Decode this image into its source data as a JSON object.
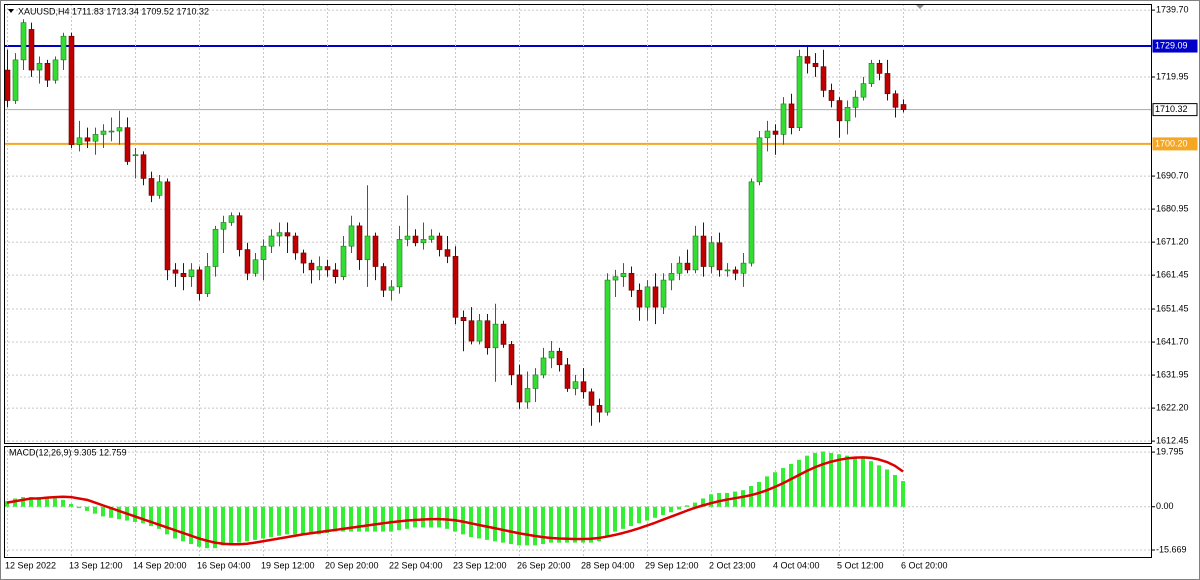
{
  "chart_data": [
    {
      "type": "candlestick",
      "title": "XAUUSD,H4  1711.83 1713.34 1709.52 1710.32",
      "ylim": [
        1611.9,
        1741.5
      ],
      "yticks": [
        1612.45,
        {
          "value": 1622.2,
          "label": "1622.20"
        },
        1631.95,
        {
          "value": 1641.7,
          "label": "1641.70"
        },
        1651.45,
        1661.45,
        {
          "value": 1671.2,
          "label": "1671.20"
        },
        1680.95,
        {
          "value": 1690.7,
          "label": "1690.70"
        },
        1719.95,
        {
          "value": 1739.7,
          "label": "1739.70"
        }
      ],
      "grid": true,
      "up_color": "#33dd33",
      "down_color": "#c00000",
      "hlines": [
        {
          "value": 1729.09,
          "color": "#0000c8",
          "text_color": "#ffffff"
        },
        {
          "value": 1710.32,
          "color": "#a0a8b8",
          "text_color": "#000000"
        },
        {
          "value": 1700.2,
          "label": "1700.20",
          "color": "#f5a623",
          "text_color": "#ffffff"
        }
      ],
      "open": [
        1722,
        1713,
        1725,
        1734,
        1722,
        1724,
        1719,
        1725,
        1732,
        1700,
        1702,
        1701,
        1703,
        1704,
        1704,
        1705,
        1697,
        1697,
        1690,
        1685,
        1689,
        1663,
        1662,
        1661,
        1663,
        1656,
        1664,
        1675,
        1677,
        1679,
        1669,
        1662,
        1666,
        1670,
        1673,
        1674,
        1673,
        1668,
        1665,
        1663,
        1664,
        1663,
        1661,
        1670,
        1676,
        1666,
        1673,
        1664,
        1657,
        1658,
        1672,
        1673,
        1671,
        1672,
        1673,
        1669,
        1667,
        1649,
        1648,
        1642,
        1648,
        1640,
        1647,
        1641,
        1632,
        1624,
        1628,
        1632,
        1637,
        1639,
        1635,
        1628,
        1630,
        1627,
        1623,
        1621,
        1660,
        1661,
        1662,
        1657,
        1652,
        1658,
        1652,
        1660,
        1662,
        1665,
        1663,
        1673,
        1664,
        1671,
        1663,
        1663,
        1662,
        1665,
        1689,
        1702,
        1704,
        1703,
        1712,
        1705,
        1726,
        1724,
        1723,
        1716,
        1713,
        1707,
        1711,
        1714,
        1718,
        1724,
        1721,
        1715,
        1711.83
      ],
      "high": [
        1728,
        1727,
        1737,
        1736,
        1726,
        1725,
        1726,
        1733,
        1733,
        1707,
        1705,
        1705,
        1706,
        1708,
        1710,
        1708,
        1699,
        1698,
        1692,
        1691,
        1690,
        1665,
        1665,
        1665,
        1664,
        1668,
        1676,
        1679,
        1680,
        1680,
        1671,
        1668,
        1672,
        1675,
        1677,
        1677,
        1674,
        1669,
        1666,
        1667,
        1666,
        1665,
        1673,
        1679,
        1677,
        1688,
        1674,
        1665,
        1660,
        1676,
        1685,
        1675,
        1677,
        1675,
        1674,
        1673,
        1670,
        1651,
        1652,
        1650,
        1650,
        1653,
        1648,
        1642,
        1635,
        1633,
        1634,
        1640,
        1642,
        1640,
        1637,
        1632,
        1634,
        1628,
        1625,
        1662,
        1663,
        1665,
        1664,
        1659,
        1660,
        1662,
        1662,
        1665,
        1667,
        1669,
        1676,
        1677,
        1673,
        1674,
        1665,
        1664,
        1668,
        1690,
        1704,
        1707,
        1706,
        1714,
        1715,
        1728,
        1729,
        1727,
        1728,
        1718,
        1714,
        1713,
        1716,
        1720,
        1725,
        1725,
        1725,
        1716,
        1713.34
      ],
      "low": [
        1711,
        1712,
        1722,
        1720,
        1718,
        1717,
        1718,
        1722,
        1699,
        1698,
        1699,
        1697,
        1699,
        1701,
        1700,
        1694,
        1690,
        1688,
        1683,
        1684,
        1660,
        1658,
        1657,
        1658,
        1654,
        1655,
        1661,
        1668,
        1676,
        1667,
        1660,
        1661,
        1660,
        1668,
        1670,
        1668,
        1666,
        1662,
        1659,
        1660,
        1661,
        1659,
        1660,
        1668,
        1663,
        1658,
        1660,
        1655,
        1654,
        1656,
        1670,
        1670,
        1669,
        1671,
        1667,
        1665,
        1647,
        1639,
        1641,
        1641,
        1638,
        1630,
        1640,
        1629,
        1622,
        1622,
        1624,
        1631,
        1634,
        1633,
        1627,
        1626,
        1625,
        1617,
        1618,
        1620,
        1655,
        1658,
        1655,
        1648,
        1648,
        1647,
        1650,
        1657,
        1660,
        1662,
        1662,
        1661,
        1662,
        1661,
        1661,
        1660,
        1658,
        1664,
        1688,
        1698,
        1697,
        1700,
        1703,
        1704,
        1721,
        1720,
        1714,
        1711,
        1702,
        1703,
        1708,
        1713,
        1717,
        1719,
        1713,
        1708,
        1709.52
      ],
      "close": [
        1713,
        1725,
        1736,
        1722,
        1724,
        1719,
        1725,
        1732,
        1700,
        1702,
        1701,
        1703,
        1704,
        1704,
        1705,
        1695,
        1697,
        1690,
        1685,
        1689,
        1663,
        1662,
        1661,
        1663,
        1656,
        1664,
        1675,
        1677,
        1679,
        1669,
        1662,
        1666,
        1670,
        1673,
        1674,
        1673,
        1668,
        1665,
        1663,
        1664,
        1663,
        1661,
        1670,
        1676,
        1666,
        1673,
        1664,
        1657,
        1658,
        1672,
        1673,
        1671,
        1672,
        1673,
        1669,
        1667,
        1649,
        1648,
        1642,
        1648,
        1640,
        1647,
        1641,
        1632,
        1624,
        1628,
        1632,
        1637,
        1639,
        1635,
        1628,
        1630,
        1627,
        1623,
        1621,
        1660,
        1661,
        1662,
        1657,
        1652,
        1658,
        1652,
        1660,
        1662,
        1665,
        1663,
        1673,
        1664,
        1671,
        1663,
        1663,
        1662,
        1665,
        1689,
        1702,
        1704,
        1703,
        1712,
        1705,
        1726,
        1724,
        1723,
        1716,
        1713,
        1707,
        1711,
        1714,
        1718,
        1724,
        1721,
        1715,
        1711,
        1710.32
      ]
    },
    {
      "type": "macd",
      "title": "MACD(12,26,9) 9.305 12.759",
      "ylim": [
        -18.2,
        22.0
      ],
      "yticks": [
        -15.669,
        {
          "value": 0,
          "label": "0.00"
        },
        19.795
      ],
      "categories": [
        "12 Sep 2022",
        null,
        null,
        null,
        null,
        null,
        null,
        null,
        "13 Sep 12:00",
        null,
        null,
        null,
        null,
        null,
        null,
        null,
        "14 Sep 20:00",
        null,
        null,
        null,
        null,
        null,
        null,
        null,
        "16 Sep 04:00",
        null,
        null,
        null,
        null,
        null,
        null,
        null,
        "19 Sep 12:00",
        null,
        null,
        null,
        null,
        null,
        null,
        null,
        "20 Sep 20:00",
        null,
        null,
        null,
        null,
        null,
        null,
        null,
        "22 Sep 04:00",
        null,
        null,
        null,
        null,
        null,
        null,
        null,
        "23 Sep 12:00",
        null,
        null,
        null,
        null,
        null,
        null,
        null,
        "26 Sep 20:00",
        null,
        null,
        null,
        null,
        null,
        null,
        null,
        "28 Sep 04:00",
        null,
        null,
        null,
        null,
        null,
        null,
        null,
        "29 Sep 12:00",
        null,
        null,
        null,
        null,
        null,
        null,
        null,
        "2 Oct 23:00",
        null,
        null,
        null,
        null,
        null,
        null,
        null,
        "4 Oct 04:00",
        null,
        null,
        null,
        null,
        null,
        null,
        null,
        "5 Oct 12:00",
        null,
        null,
        null,
        null,
        null,
        null,
        null,
        "6 Oct 20:00"
      ],
      "histogram": {
        "color": "#33ee33",
        "values": [
          2,
          3,
          3.5,
          3.5,
          3.5,
          3,
          3,
          2.5,
          1,
          -0.5,
          -1.5,
          -2.5,
          -3.5,
          -4,
          -4.5,
          -5,
          -5.5,
          -6,
          -7,
          -8,
          -10,
          -11.5,
          -12.5,
          -13.5,
          -14.5,
          -15,
          -15,
          -14,
          -13.5,
          -13,
          -12.5,
          -12,
          -11.5,
          -11,
          -10.5,
          -10,
          -10,
          -10,
          -10,
          -10,
          -9.5,
          -9,
          -9,
          -9,
          -9,
          -9,
          -9,
          -9,
          -9,
          -8.5,
          -8,
          -7.5,
          -7.5,
          -7.5,
          -7.5,
          -8,
          -9,
          -10,
          -11,
          -11.5,
          -12,
          -12.5,
          -13,
          -13.5,
          -14,
          -14,
          -14,
          -13.5,
          -13,
          -13,
          -13,
          -13,
          -13,
          -13,
          -12.5,
          -10.5,
          -9,
          -8,
          -7,
          -6,
          -5,
          -4,
          -3,
          -2,
          -1,
          0.5,
          1.5,
          3,
          4.5,
          5,
          5,
          5.5,
          6,
          7.5,
          9,
          11,
          12.5,
          14,
          15.5,
          17,
          18.5,
          19.5,
          20,
          19.5,
          19,
          18.5,
          18,
          17.5,
          16.5,
          15,
          13.5,
          11.5,
          9.305
        ]
      },
      "signal": {
        "color": "#dd0000",
        "values": [
          1.5,
          2,
          2.5,
          3,
          3,
          3.3,
          3.5,
          3.6,
          3.5,
          3,
          2.5,
          1.5,
          0.5,
          -0.5,
          -1.5,
          -2.5,
          -3.5,
          -4.5,
          -5.5,
          -6.5,
          -7.5,
          -8.5,
          -9.5,
          -10.5,
          -11.5,
          -12.3,
          -13,
          -13.4,
          -13.6,
          -13.6,
          -13.4,
          -13,
          -12.5,
          -12,
          -11.5,
          -11,
          -10.5,
          -10,
          -9.6,
          -9.2,
          -8.8,
          -8.4,
          -8,
          -7.6,
          -7.2,
          -6.8,
          -6.4,
          -6,
          -5.6,
          -5.3,
          -5,
          -4.8,
          -4.6,
          -4.5,
          -4.5,
          -4.6,
          -4.9,
          -5.4,
          -6,
          -6.6,
          -7.2,
          -7.8,
          -8.4,
          -9,
          -9.6,
          -10.1,
          -10.6,
          -11,
          -11.3,
          -11.5,
          -11.6,
          -11.7,
          -11.7,
          -11.6,
          -11.3,
          -10.8,
          -10.2,
          -9.5,
          -8.7,
          -7.8,
          -6.8,
          -5.8,
          -4.7,
          -3.6,
          -2.5,
          -1.4,
          -0.4,
          0.5,
          1.3,
          2,
          2.6,
          3.1,
          3.6,
          4.2,
          5,
          6,
          7.2,
          8.5,
          10,
          11.5,
          13,
          14.3,
          15.4,
          16.3,
          17,
          17.5,
          17.8,
          17.9,
          17.7,
          17.1,
          16.2,
          14.8,
          12.759
        ]
      }
    }
  ]
}
